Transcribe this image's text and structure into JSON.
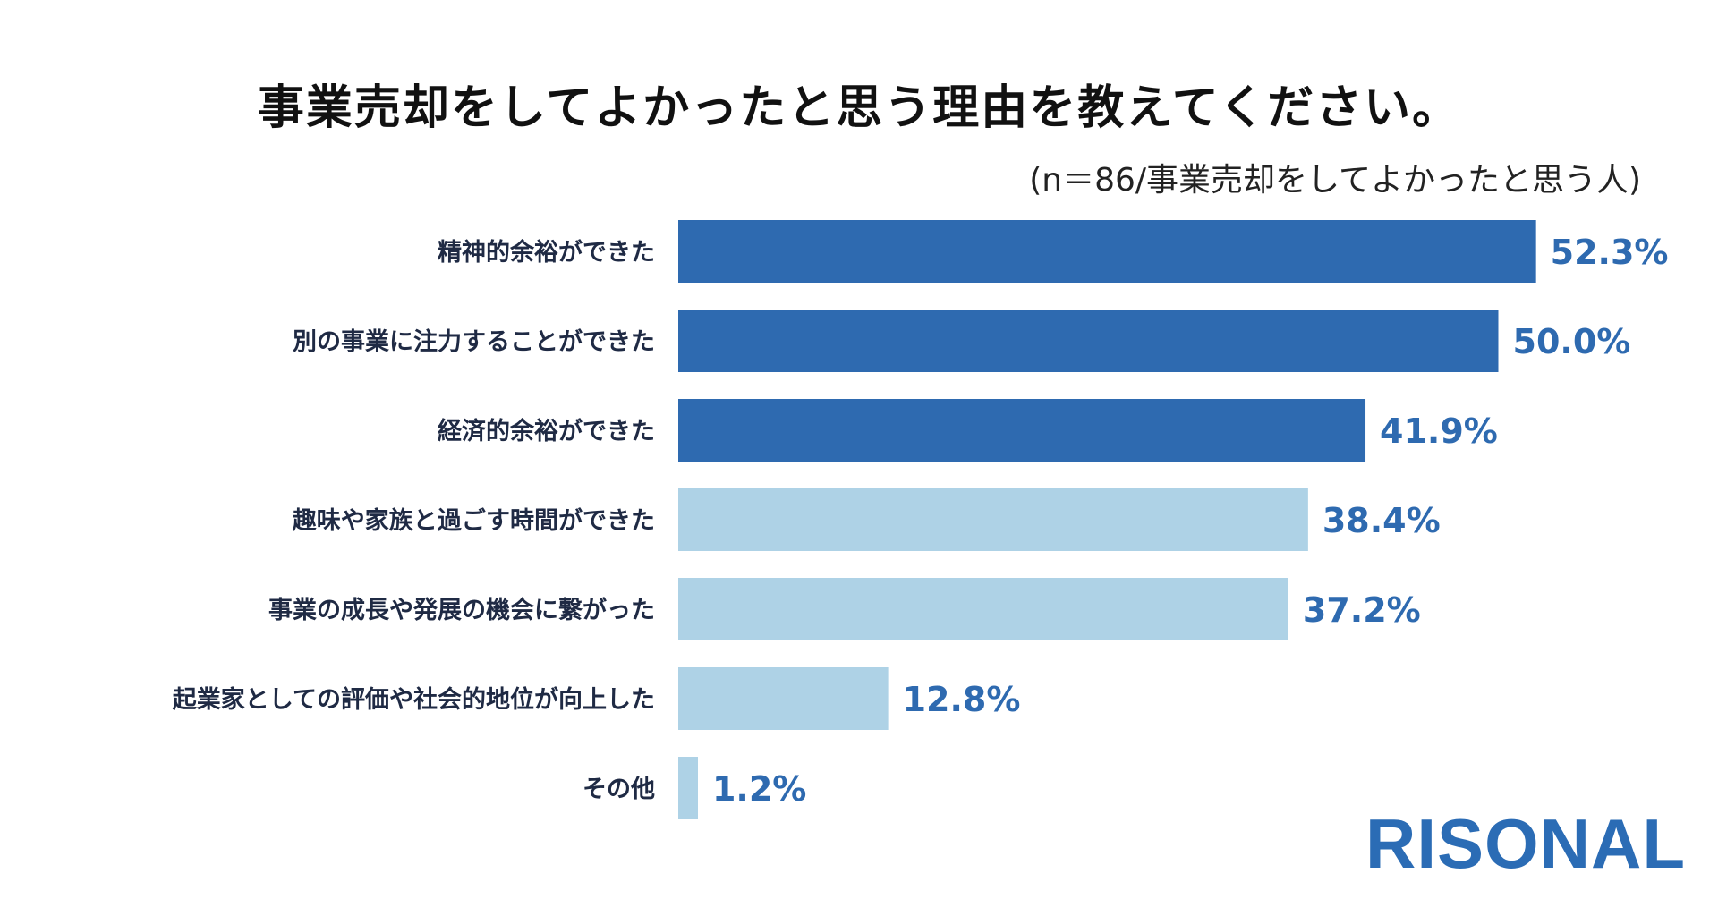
{
  "chart_data": {
    "type": "bar",
    "orientation": "horizontal",
    "title": "事業売却をしてよかったと思う理由を教えてください。",
    "note": "(n＝86/事業売却をしてよかったと思う人)",
    "categories": [
      "精神的余裕ができた",
      "別の事業に注力することができた",
      "経済的余裕ができた",
      "趣味や家族と過ごす時間ができた",
      "事業の成長や発展の機会に繋がった",
      "起業家としての評価や社会的地位が向上した",
      "その他"
    ],
    "values": [
      52.3,
      50.0,
      41.9,
      38.4,
      37.2,
      12.8,
      1.2
    ],
    "value_labels": [
      "52.3%",
      "50.0%",
      "41.9%",
      "38.4%",
      "37.2%",
      "12.8%",
      "1.2%"
    ],
    "unit": "%",
    "xlim": [
      0,
      60
    ],
    "grid": false,
    "colors": {
      "highlight": "#2e6ab0",
      "normal": "#aed2e6",
      "value_text": "#2e6ab0",
      "category_text": "#1f2a44"
    },
    "highlighted_top": 3
  },
  "brand": {
    "logo_text": "RISONAL",
    "color": "#2b6cb5"
  }
}
